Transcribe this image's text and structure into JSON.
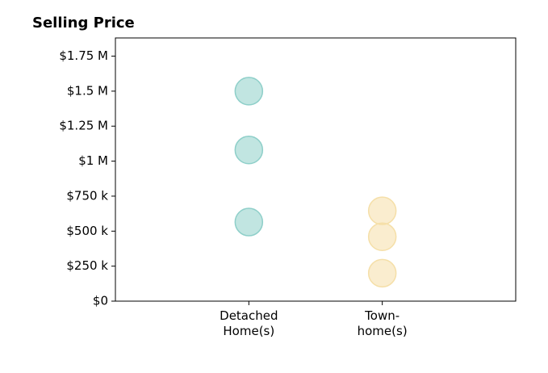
{
  "chart_data": {
    "type": "strip",
    "title": "Selling Price",
    "categories": [
      "Detached\nHome(s)",
      "Town-\nhome(s)"
    ],
    "values": [
      [
        1500000,
        1080000,
        565000
      ],
      [
        645000,
        460000,
        200000
      ]
    ],
    "colors": [
      "#8ecfc9",
      "#f5dfa8"
    ],
    "ylim": [
      0,
      1880000
    ],
    "yticks": [
      {
        "value": 0,
        "label": "$0"
      },
      {
        "value": 250000,
        "label": "$250 k"
      },
      {
        "value": 500000,
        "label": "$500 k"
      },
      {
        "value": 750000,
        "label": "$750 k"
      },
      {
        "value": 1000000,
        "label": "$1 M"
      },
      {
        "value": 1250000,
        "label": "$1.25 M"
      },
      {
        "value": 1500000,
        "label": "$1.5 M"
      },
      {
        "value": 1750000,
        "label": "$1.75 M"
      }
    ]
  }
}
